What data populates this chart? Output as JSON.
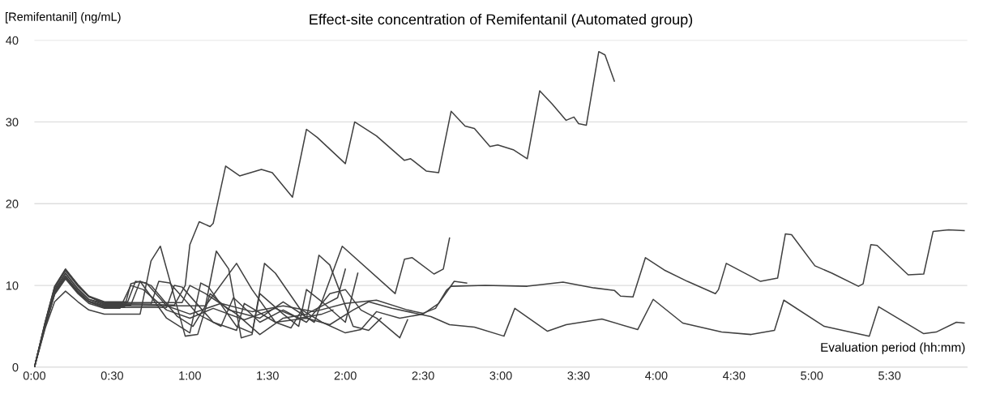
{
  "chart_data": {
    "type": "line",
    "title": "Effect-site concentration of Remifentanil (Automated group)",
    "ylabel": "[Remifentanil] (ng/mL)",
    "xlabel": "Evaluation period (hh:mm)",
    "xlim": [
      0,
      6
    ],
    "xticks": [
      {
        "value": 0,
        "label": "0:00"
      },
      {
        "value": 0.5,
        "label": "0:30"
      },
      {
        "value": 1,
        "label": "1:00"
      },
      {
        "value": 1.5,
        "label": "1:30"
      },
      {
        "value": 2,
        "label": "2:00"
      },
      {
        "value": 2.5,
        "label": "2:30"
      },
      {
        "value": 3,
        "label": "3:00"
      },
      {
        "value": 3.5,
        "label": "3:30"
      },
      {
        "value": 4,
        "label": "4:00"
      },
      {
        "value": 4.5,
        "label": "4:30"
      },
      {
        "value": 5,
        "label": "5:00"
      },
      {
        "value": 5.5,
        "label": "5:30"
      }
    ],
    "ylim": [
      0,
      40
    ],
    "yticks": [
      0,
      10,
      20,
      30,
      40
    ],
    "grid": "y",
    "legend": false,
    "marker": "none",
    "line_style": "solid",
    "series": [
      {
        "color": "#404040",
        "x": [
          0,
          0.07,
          0.13,
          0.2,
          0.28,
          0.35,
          0.45,
          0.9,
          0.97,
          1.0,
          1.06,
          1.13,
          1.15,
          1.23,
          1.32,
          1.46,
          1.53,
          1.66,
          1.75,
          1.82,
          2.0,
          2.06,
          2.2,
          2.38,
          2.42,
          2.52,
          2.6,
          2.68,
          2.77,
          2.83,
          2.93,
          2.98,
          3.08,
          3.17,
          3.25,
          3.33,
          3.42,
          3.47,
          3.5,
          3.55,
          3.63,
          3.67,
          3.73
        ],
        "values": [
          0,
          5.3,
          9.3,
          11.5,
          9.5,
          8.3,
          7.8,
          7.6,
          10,
          15,
          17.8,
          17.2,
          17.6,
          24.6,
          23.4,
          24.2,
          23.8,
          20.8,
          29.1,
          28.1,
          24.9,
          30.0,
          28.3,
          25.3,
          25.5,
          24.0,
          23.8,
          31.3,
          29.5,
          29.2,
          27.0,
          27.2,
          26.6,
          25.5,
          33.8,
          32.2,
          30.2,
          30.6,
          29.8,
          29.6,
          38.6,
          38.2,
          35.0
        ]
      },
      {
        "color": "#404040",
        "x": [
          0,
          0.07,
          0.13,
          0.2,
          0.28,
          0.35,
          0.45,
          0.6,
          0.65,
          0.72,
          0.85,
          1.0,
          1.2,
          1.4,
          1.6,
          1.8,
          2.0,
          2.2,
          2.4,
          2.5,
          2.58,
          2.65,
          2.68,
          2.9,
          3.17,
          3.4,
          3.6,
          3.73,
          3.77,
          3.85,
          3.93,
          4.05,
          4.2,
          4.38,
          4.4,
          4.45,
          4.67,
          4.78,
          4.83,
          4.87,
          5.02,
          5.13,
          5.3,
          5.33,
          5.38,
          5.42,
          5.62,
          5.72,
          5.78,
          5.88,
          5.98
        ],
        "values": [
          0,
          5.5,
          9.8,
          12,
          10,
          8.7,
          8.0,
          8.0,
          10.5,
          10.3,
          7.5,
          6.5,
          7.8,
          6.8,
          7.5,
          6.8,
          7.8,
          8.2,
          7.0,
          6.6,
          7.2,
          9.4,
          9.9,
          10.0,
          9.9,
          10.4,
          9.7,
          9.4,
          8.7,
          8.6,
          13.4,
          11.9,
          10.5,
          9.0,
          9.5,
          12.7,
          10.5,
          10.9,
          16.3,
          16.2,
          12.4,
          11.5,
          9.9,
          10.2,
          15.0,
          14.9,
          11.3,
          11.4,
          16.6,
          16.8,
          16.7
        ]
      },
      {
        "color": "#404040",
        "x": [
          0,
          0.07,
          0.13,
          0.2,
          0.28,
          0.35,
          0.45,
          0.85,
          0.9,
          0.95,
          1.15,
          1.3,
          1.35,
          1.55,
          1.75,
          1.9,
          2.05,
          2.15,
          2.3,
          2.55,
          2.67,
          2.83,
          3.02,
          3.09,
          3.3,
          3.42,
          3.65,
          3.88,
          3.98,
          4.17,
          4.42,
          4.61,
          4.76,
          4.82,
          5.08,
          5.37,
          5.43,
          5.72,
          5.8,
          5.93,
          5.98
        ],
        "values": [
          0,
          5.2,
          9.0,
          11,
          9.2,
          8.0,
          7.3,
          7.3,
          10.0,
          9.8,
          5.5,
          4.5,
          7.8,
          5.5,
          6.0,
          5.2,
          7.0,
          8.0,
          7.2,
          6.2,
          5.2,
          4.9,
          3.8,
          7.2,
          4.4,
          5.2,
          5.9,
          4.6,
          8.3,
          5.4,
          4.3,
          4.0,
          4.5,
          8.2,
          5.0,
          3.8,
          7.4,
          4.1,
          4.3,
          5.5,
          5.4
        ]
      },
      {
        "color": "#404040",
        "x": [
          0,
          0.07,
          0.13,
          0.2,
          0.28,
          0.35,
          0.45,
          0.68,
          0.75,
          0.81,
          0.97,
          1.05,
          1.13,
          1.25,
          1.45,
          1.6,
          1.8,
          1.98,
          2.32,
          2.38,
          2.43,
          2.57,
          2.63,
          2.67
        ],
        "values": [
          0,
          4.8,
          8.0,
          9.3,
          8.0,
          7.0,
          6.5,
          6.5,
          13,
          14.8,
          3.8,
          4.0,
          9.0,
          7.0,
          6.0,
          8.0,
          5.5,
          14.8,
          9.0,
          13.2,
          13.4,
          11.4,
          12.0,
          15.8
        ]
      },
      {
        "color": "#404040",
        "x": [
          0,
          0.07,
          0.13,
          0.2,
          0.28,
          0.35,
          0.45,
          1.1,
          1.17,
          1.25,
          1.33,
          1.4,
          1.48,
          1.55,
          1.75,
          1.83,
          1.9,
          2.05,
          2.15,
          2.23
        ],
        "values": [
          0,
          5.2,
          9.2,
          11.2,
          9.3,
          8.1,
          7.5,
          7.5,
          14.2,
          12,
          3.6,
          4.0,
          12.7,
          11.5,
          6.0,
          13.7,
          12.5,
          5.0,
          4.5,
          6.0
        ]
      },
      {
        "color": "#404040",
        "x": [
          0,
          0.07,
          0.13,
          0.2,
          0.28,
          0.35,
          0.45,
          0.58,
          0.62,
          0.68,
          0.85,
          1.0,
          1.07,
          1.12,
          1.3,
          1.4,
          1.45,
          1.6,
          1.7,
          1.75,
          1.85,
          2.0,
          2.08
        ],
        "values": [
          0,
          5.1,
          9.0,
          11,
          9.1,
          8.0,
          7.4,
          7.4,
          10.2,
          10.5,
          6.0,
          4.2,
          10.3,
          9.8,
          5.0,
          4.2,
          9.0,
          6.5,
          5.0,
          9.5,
          8.0,
          5.5,
          11.5
        ]
      },
      {
        "color": "#404040",
        "x": [
          0,
          0.07,
          0.13,
          0.2,
          0.28,
          0.35,
          0.45,
          0.62,
          0.68,
          0.75,
          0.92,
          1.02,
          1.1,
          1.3,
          1.4,
          1.55,
          1.65,
          1.72,
          1.85,
          2.0,
          2.1,
          2.2,
          2.35,
          2.5,
          2.6,
          2.7,
          2.78
        ],
        "values": [
          0,
          5.4,
          9.5,
          11.5,
          9.6,
          8.3,
          7.6,
          7.6,
          10.5,
          10.0,
          6.2,
          5.0,
          7.5,
          12.7,
          9.5,
          5.5,
          4.8,
          7.0,
          5.5,
          4.2,
          4.6,
          6.8,
          6.0,
          6.5,
          7.8,
          10.5,
          10.3
        ]
      },
      {
        "color": "#404040",
        "x": [
          0,
          0.07,
          0.13,
          0.2,
          0.28,
          0.35,
          0.45,
          0.75,
          0.8,
          0.87,
          1.05,
          1.2,
          1.28,
          1.45,
          1.6,
          1.75,
          1.9,
          2.0,
          2.1,
          2.2,
          2.35,
          2.4
        ],
        "values": [
          0,
          5.6,
          9.9,
          12,
          10.1,
          8.7,
          7.7,
          7.7,
          10.5,
          10.3,
          6.5,
          5.0,
          8.5,
          5.5,
          7.0,
          5.5,
          9.0,
          9.5,
          7.0,
          6.0,
          3.6,
          5.8
        ]
      },
      {
        "color": "#404040",
        "x": [
          0,
          0.07,
          0.13,
          0.2,
          0.28,
          0.35,
          0.45,
          0.55,
          0.62,
          0.7,
          0.85,
          1.0,
          1.15,
          1.35,
          1.55,
          1.7,
          1.85,
          1.92
        ],
        "values": [
          0,
          5.0,
          8.9,
          10.8,
          9.0,
          7.8,
          7.2,
          7.2,
          10.0,
          9.5,
          7.0,
          6.0,
          7.2,
          5.8,
          7.2,
          6.0,
          6.5,
          7.0
        ]
      },
      {
        "color": "#404040",
        "x": [
          0,
          0.07,
          0.13,
          0.2,
          0.28,
          0.35,
          0.45,
          0.95,
          1.0,
          1.1,
          1.3,
          1.45,
          1.6,
          1.75,
          1.95,
          2.0
        ],
        "values": [
          0,
          5.5,
          9.7,
          11.8,
          9.9,
          8.6,
          7.9,
          7.9,
          10.0,
          9.0,
          6.5,
          4.0,
          6.0,
          6.5,
          8.5,
          12.0
        ]
      }
    ]
  }
}
